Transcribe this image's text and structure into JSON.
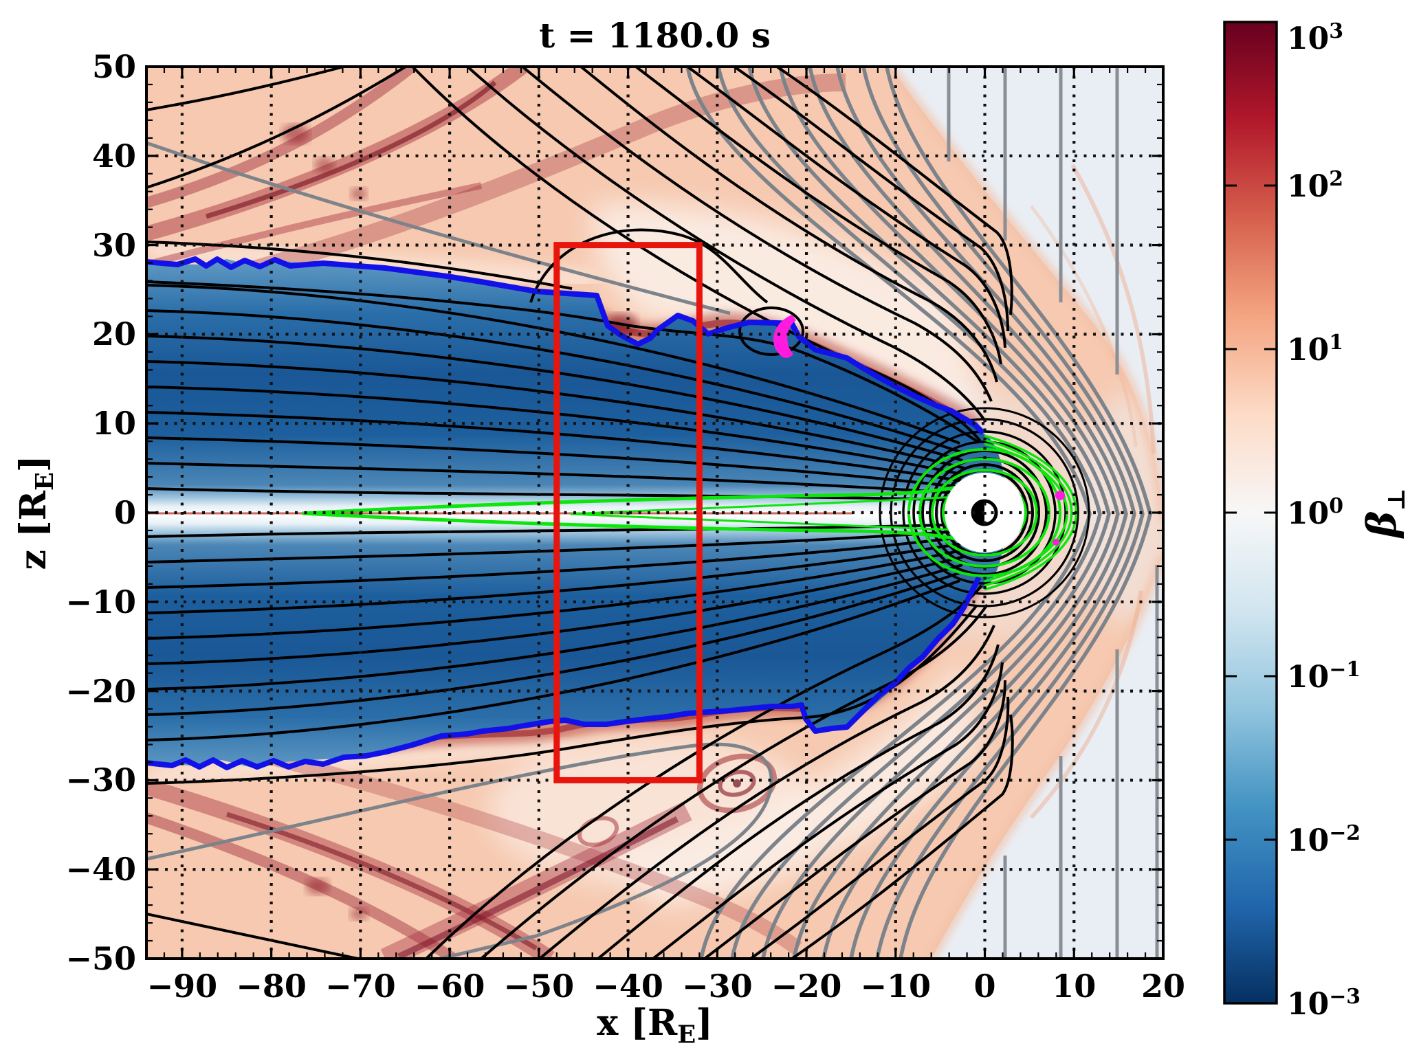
{
  "chart_data": {
    "type": "heatmap",
    "title": "t = 1180.0 s",
    "xlabel": "x [R_E]",
    "ylabel": "z [R_E]",
    "xlabel_parts": {
      "pre": "x [R",
      "sub": "E",
      "post": "]"
    },
    "ylabel_parts": {
      "pre": "z [R",
      "sub": "E",
      "post": "]"
    },
    "quantity": "perpendicular plasma beta in meridional x-z plane",
    "xlim": [
      -94,
      20
    ],
    "ylim": [
      -50,
      50
    ],
    "x_major_ticks": [
      -90,
      -80,
      -70,
      -60,
      -50,
      -40,
      -30,
      -20,
      -10,
      0,
      10,
      20
    ],
    "x_tick_labels": [
      "−90",
      "−80",
      "−70",
      "−60",
      "−50",
      "−40",
      "−30",
      "−20",
      "−10",
      "0",
      "10",
      "20"
    ],
    "y_major_ticks": [
      50,
      40,
      30,
      20,
      10,
      0,
      -10,
      -20,
      -30,
      -40,
      -50
    ],
    "y_tick_labels": [
      "50",
      "40",
      "30",
      "20",
      "10",
      "0",
      "−10",
      "−20",
      "−30",
      "−40",
      "−50"
    ],
    "minor_tick_step": 2,
    "grid": {
      "style": "dotted",
      "spacing": 10,
      "color": "#111111"
    },
    "colorbar": {
      "label": "β⊥",
      "label_base": "β",
      "label_sub": "⊥",
      "scale": "log",
      "min": 0.001,
      "max": 1000,
      "tick_exponents": [
        3,
        2,
        1,
        0,
        -1,
        -2,
        -3
      ],
      "tick_exponent_labels": [
        "3",
        "2",
        "1",
        "0",
        "−1",
        "−2",
        "−3"
      ],
      "tick_base": "10",
      "colormap": "RdBu_r",
      "stops": [
        "#67001f",
        "#b2182b",
        "#d6604d",
        "#f4a582",
        "#fddbc7",
        "#f7f7f7",
        "#d1e5f0",
        "#92c5de",
        "#4393c3",
        "#2166ac",
        "#053061"
      ]
    },
    "annotations": {
      "red_box": {
        "x": [
          -48,
          -32
        ],
        "z": [
          -30,
          30
        ],
        "color": "#e8150e"
      },
      "earth": {
        "x": 0,
        "z": 0,
        "symbol": "half-filled circle (nightside black)"
      },
      "contours": [
        {
          "name": "magnetospheric-field-lines",
          "color": "#000000"
        },
        {
          "name": "solar-wind-field-lines",
          "color": "#7d838a"
        },
        {
          "name": "plasma-sheet-boundary",
          "color": "#1212e8"
        },
        {
          "name": "closed-field-line-region",
          "color": "#0be60b"
        },
        {
          "name": "special-contour",
          "color": "#ff1adf"
        }
      ]
    }
  }
}
